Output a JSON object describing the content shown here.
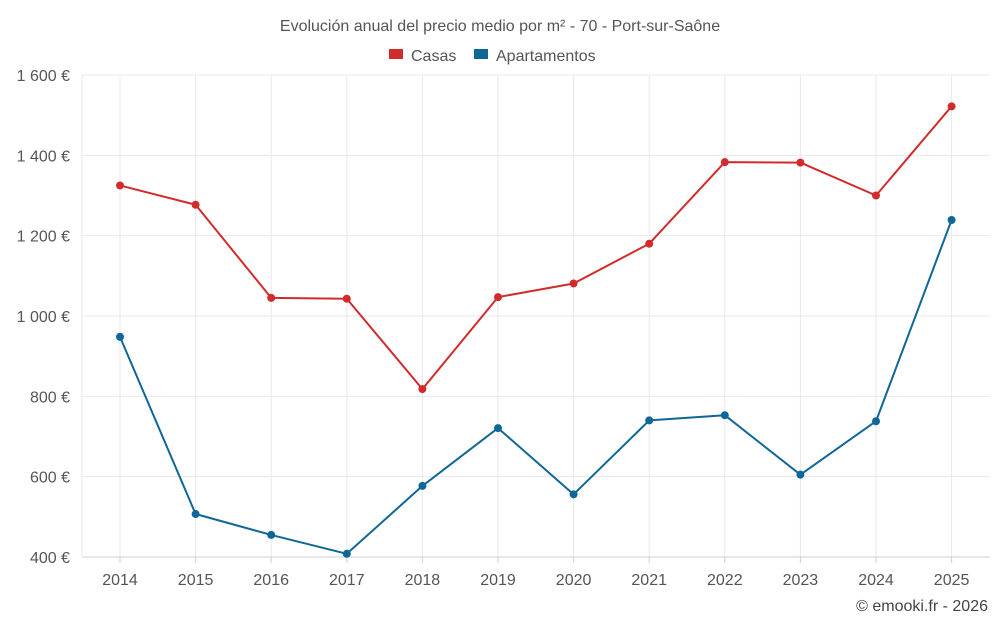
{
  "chart_data": {
    "type": "line",
    "title": "Evolución anual del precio medio por m² - 70 - Port-sur-Saône",
    "categories": [
      "2014",
      "2015",
      "2016",
      "2017",
      "2018",
      "2019",
      "2020",
      "2021",
      "2022",
      "2023",
      "2024",
      "2025"
    ],
    "series": [
      {
        "name": "Casas",
        "color": "#d22b2b",
        "values": [
          1325,
          1277,
          1045,
          1043,
          818,
          1047,
          1081,
          1180,
          1383,
          1382,
          1300,
          1522
        ]
      },
      {
        "name": "Apartamentos",
        "color": "#0f6799",
        "values": [
          948,
          507,
          455,
          408,
          577,
          721,
          556,
          740,
          753,
          605,
          738,
          1239
        ]
      }
    ],
    "ylim": [
      400,
      1600
    ],
    "yticks": [
      {
        "value": 400,
        "label": "400 €"
      },
      {
        "value": 600,
        "label": "600 €"
      },
      {
        "value": 800,
        "label": "800 €"
      },
      {
        "value": 1000,
        "label": "1 000 €"
      },
      {
        "value": 1200,
        "label": "1 200 €"
      },
      {
        "value": 1400,
        "label": "1 400 €"
      },
      {
        "value": 1600,
        "label": "1 600 €"
      }
    ],
    "legend_position": "top-center",
    "grid": true
  },
  "credit": "© emooki.fr - 2026"
}
